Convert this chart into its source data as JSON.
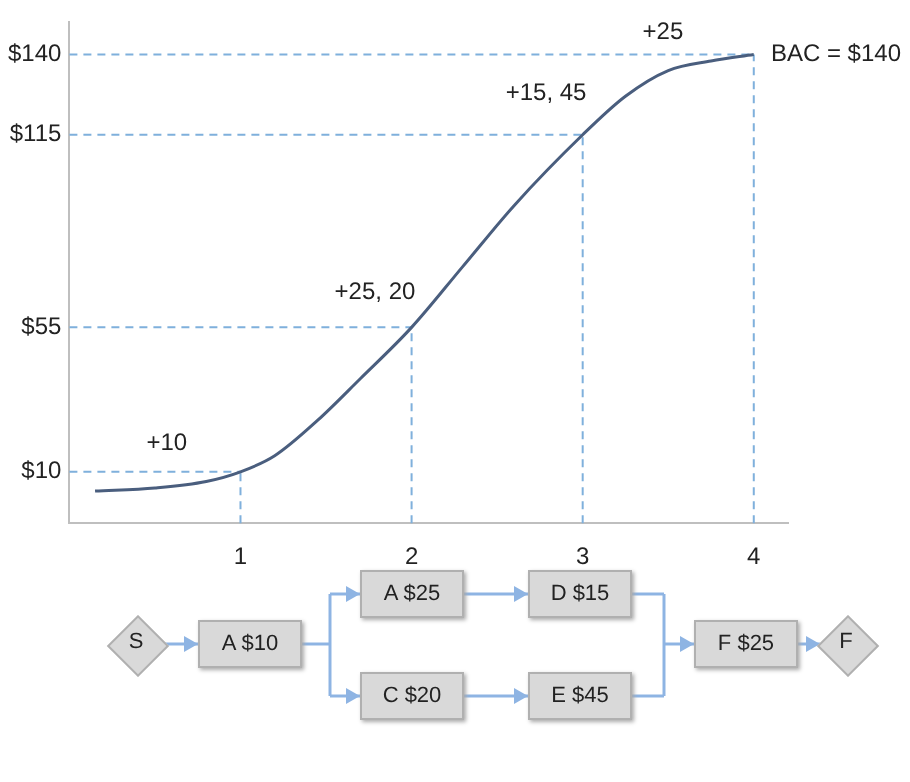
{
  "chart_data": {
    "type": "line",
    "x": [
      0.15,
      0.5,
      0.8,
      1,
      1.2,
      1.45,
      1.7,
      2,
      2.3,
      2.6,
      3,
      3.25,
      3.5,
      3.75,
      4
    ],
    "series": [
      {
        "color": "#4a5e7e",
        "values": [
          4,
          5,
          7,
          10,
          15,
          26,
          39,
          55,
          74,
          93,
          115,
          127,
          135,
          138,
          140
        ]
      }
    ],
    "xlim": [
      0,
      4.2
    ],
    "xticks": [
      1,
      2,
      3,
      4
    ],
    "ylim": [
      -6,
      150
    ],
    "yticks": [
      {
        "value": 10,
        "label": "$10"
      },
      {
        "value": 55,
        "label": "$55"
      },
      {
        "value": 115,
        "label": "$115"
      },
      {
        "value": 140,
        "label": "$140"
      }
    ],
    "grid": false,
    "legend": false,
    "marker": "none",
    "line_style": "solid",
    "ref_lines": [
      {
        "axis": "y",
        "value": 10,
        "color": "#7fb0dc",
        "line_style": "dashed"
      },
      {
        "axis": "y",
        "value": 55,
        "color": "#7fb0dc",
        "line_style": "dashed"
      },
      {
        "axis": "y",
        "value": 115,
        "color": "#7fb0dc",
        "line_style": "dashed"
      },
      {
        "axis": "y",
        "value": 140,
        "color": "#7fb0dc",
        "line_style": "dashed"
      },
      {
        "axis": "x",
        "value": 1,
        "color": "#7fb0dc",
        "line_style": "dashed"
      },
      {
        "axis": "x",
        "value": 2,
        "color": "#7fb0dc",
        "line_style": "dashed"
      },
      {
        "axis": "x",
        "value": 3,
        "color": "#7fb0dc",
        "line_style": "dashed"
      },
      {
        "axis": "x",
        "value": 4,
        "color": "#7fb0dc",
        "line_style": "dashed"
      }
    ],
    "annotations": [
      "+10",
      "+25, 20",
      "+15, 45",
      "+25",
      "BAC = $140",
      "S",
      "A $10",
      "A $25",
      "D $15",
      "C $20",
      "E $45",
      "F $25",
      "F"
    ]
  }
}
